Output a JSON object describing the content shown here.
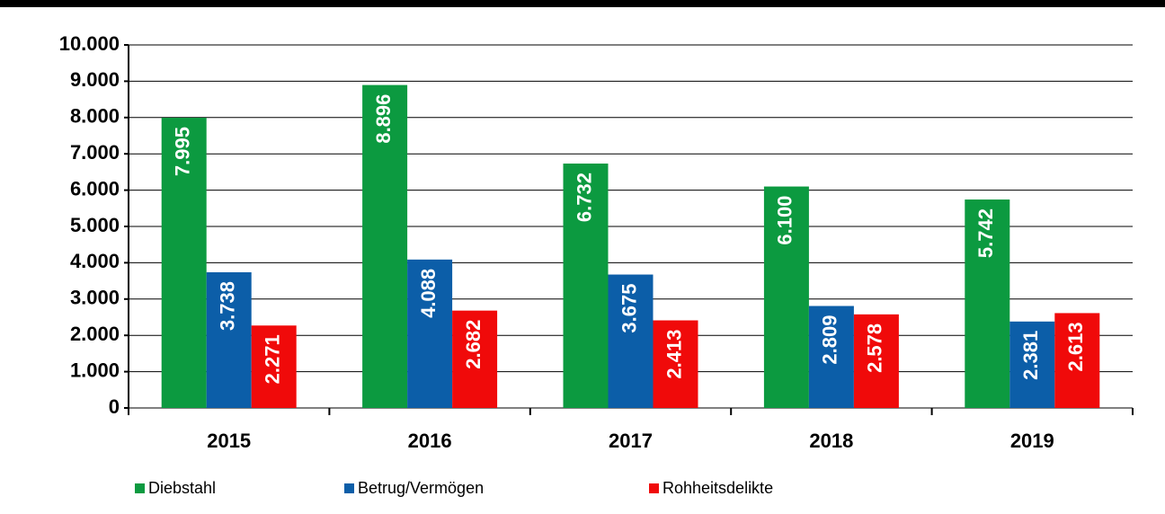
{
  "chart_data": {
    "type": "bar",
    "categories": [
      "2015",
      "2016",
      "2017",
      "2018",
      "2019"
    ],
    "series": [
      {
        "name": "Diebstahl",
        "color": "#0c9a40",
        "values": [
          7995,
          8896,
          6732,
          6100,
          5742
        ],
        "value_labels": [
          "7.995",
          "8.896",
          "6.732",
          "6.100",
          "5.742"
        ]
      },
      {
        "name": "Betrug/Vermögen",
        "color": "#0c5ea8",
        "values": [
          3738,
          4088,
          3675,
          2809,
          2381
        ],
        "value_labels": [
          "3.738",
          "4.088",
          "3.675",
          "2.809",
          "2.381"
        ]
      },
      {
        "name": "Rohheitsdelikte",
        "color": "#f00a0a",
        "values": [
          2271,
          2682,
          2413,
          2578,
          2613
        ],
        "value_labels": [
          "2.271",
          "2.682",
          "2.413",
          "2.578",
          "2.613"
        ]
      }
    ],
    "ylim": [
      0,
      10000
    ],
    "yticks": [
      0,
      {
        "value": 1000,
        "label": "1.000"
      },
      {
        "value": 2000,
        "label": "2.000"
      },
      {
        "value": 3000,
        "label": "3.000"
      },
      {
        "value": 4000,
        "label": "4.000"
      },
      {
        "value": 5000,
        "label": "5.000"
      },
      {
        "value": 6000,
        "label": "6.000"
      },
      {
        "value": 7000,
        "label": "7.000"
      },
      {
        "value": 8000,
        "label": "8.000"
      },
      {
        "value": 9000,
        "label": "9.000"
      },
      {
        "value": 10000,
        "label": "10.000"
      }
    ],
    "grid": true
  }
}
